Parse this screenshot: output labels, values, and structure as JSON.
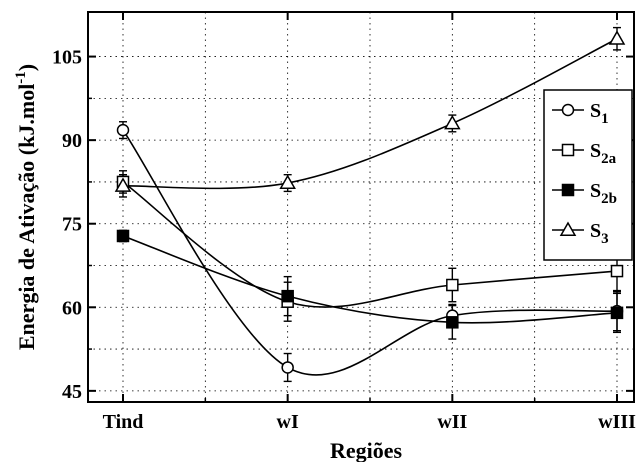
{
  "chart_data": {
    "type": "line",
    "xlabel": "Regiões",
    "ylabel": "Energia de Ativação (kJ.mol",
    "ylabel_sup": "-1",
    "ylabel_end": ")",
    "categories": [
      "Tind",
      "wI",
      "wII",
      "wIII"
    ],
    "ylim": [
      43,
      113
    ],
    "yticks": [
      "45",
      "60",
      "75",
      "90",
      "105"
    ],
    "grid": true,
    "legend_position": "right",
    "series": [
      {
        "name": "S",
        "sub": "1",
        "marker": "circle-open",
        "values": [
          91.8,
          49.2,
          58.5,
          59.3
        ],
        "errors": [
          1.5,
          2.5,
          2.0,
          3.5
        ]
      },
      {
        "name": "S",
        "sub": "2a",
        "marker": "square-open",
        "values": [
          82.5,
          61.0,
          64.0,
          66.5
        ],
        "errors": [
          2.0,
          3.5,
          3.0,
          3.5
        ]
      },
      {
        "name": "S",
        "sub": "2b",
        "marker": "square-filled",
        "values": [
          72.8,
          62.0,
          57.3,
          59.0
        ],
        "errors": [
          1.0,
          3.5,
          3.0,
          3.5
        ]
      },
      {
        "name": "S",
        "sub": "3",
        "marker": "triangle-open",
        "values": [
          81.8,
          82.3,
          93.0,
          108.2
        ],
        "errors": [
          2.0,
          1.5,
          1.5,
          2.0
        ]
      }
    ]
  }
}
